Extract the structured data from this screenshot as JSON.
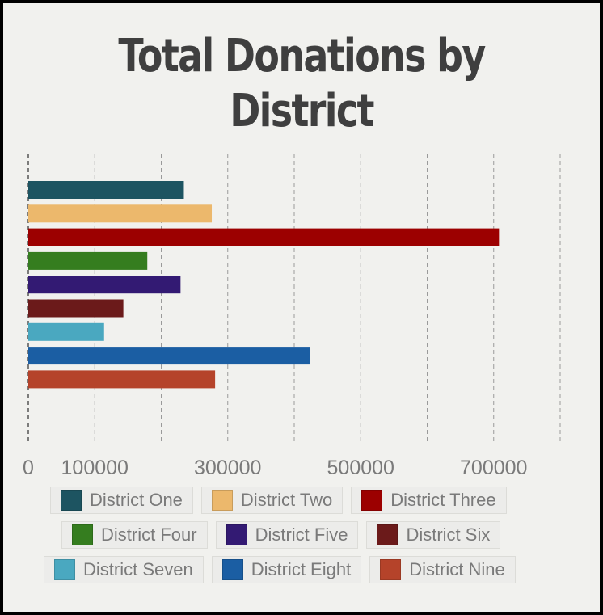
{
  "chart_data": {
    "type": "bar",
    "orientation": "horizontal",
    "title": "Total Donations by District",
    "categories": [
      "District One",
      "District Two",
      "District Three",
      "District Four",
      "District Five",
      "District Six",
      "District Seven",
      "District Eight",
      "District Nine"
    ],
    "values": [
      234000,
      276000,
      708000,
      179000,
      229000,
      143000,
      114000,
      424000,
      281000
    ],
    "colors": [
      "#1d5461",
      "#ecb86c",
      "#9c0000",
      "#357d1f",
      "#331a73",
      "#6b1a1a",
      "#4aa8c0",
      "#1b5ea3",
      "#b5432a"
    ],
    "xlim": [
      0,
      800000
    ],
    "xticks": [
      0,
      100000,
      200000,
      300000,
      400000,
      500000,
      600000,
      700000,
      800000
    ],
    "xtick_labels": [
      "0",
      "100000",
      "",
      "300000",
      "",
      "500000",
      "",
      "700000",
      ""
    ],
    "grid": true,
    "grid_style": "dashed",
    "legend_position": "bottom"
  }
}
